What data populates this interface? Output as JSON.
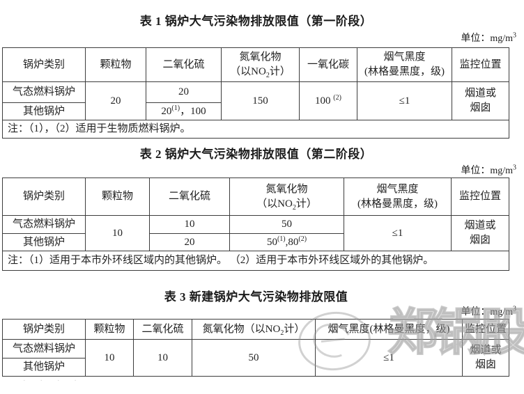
{
  "section1": {
    "title": "表 1 锅炉大气污染物排放限值（第一阶段）",
    "unit": "单位：mg/m{sup:3}",
    "headers": {
      "category": "锅炉类别",
      "pm": "颗粒物",
      "so2": "二氧化硫",
      "nox": "氮氧化物\n（以NO{sub:2}计）",
      "co": "一氧化碳",
      "smoke": "烟气黑度\n(林格曼黑度，级)",
      "location": "监控位置"
    },
    "rows": {
      "r1_category": "气态燃料锅炉",
      "r2_category": "其他锅炉",
      "pm": "20",
      "r1_so2": "20",
      "r2_so2": "20{sup:(1)}，100",
      "nox": "150",
      "co": "100 {sup:(2)}",
      "smoke": "≤1",
      "location": "烟道或\n烟囱"
    },
    "note": "注：（1），（2）适用于生物质燃料锅炉。"
  },
  "section2": {
    "title": "表 2 锅炉大气污染物排放限值（第二阶段）",
    "unit": "单位：mg/m{sup:3}",
    "headers": {
      "category": "锅炉类别",
      "pm": "颗粒物",
      "so2": "二氧化硫",
      "nox": "氮氧化物\n（以NO{sub:2}计）",
      "smoke": "烟气黑度\n(林格曼黑度，级)",
      "location": "监控位置"
    },
    "rows": {
      "r1_category": "气态燃料锅炉",
      "r2_category": "其他锅炉",
      "pm": "10",
      "r1_so2": "10",
      "r2_so2": "20",
      "r1_nox": "50",
      "r2_nox": "50{sup:(1)},80{sup:(2)}",
      "smoke": "≤1",
      "location": "烟道或\n烟囱"
    },
    "note": "注：（1）适用于本市外环线区域内的其他锅炉。 （2）适用于本市外环线区域外的其他锅炉。"
  },
  "section3": {
    "title": "表 3 新建锅炉大气污染物排放限值",
    "unit": "单位：mg/m{sup:3}",
    "headers": {
      "category": "锅炉类别",
      "pm": "颗粒物",
      "so2": "二氧化硫",
      "nox": "氮氧化物（以NO{sub:2}计）",
      "smoke": "烟气黑度(林格曼黑度，级)",
      "location": "监控位置"
    },
    "rows": {
      "r1_category": "气态燃料锅炉",
      "r2_category": "其他锅炉",
      "pm": "10",
      "so2": "10",
      "nox": "50",
      "smoke": "≤1",
      "location": "烟道或\n烟囱"
    }
  },
  "watermark": {
    "text": "郑锅股份",
    "color": "#9b9b9b",
    "dots": "· · · ·"
  }
}
